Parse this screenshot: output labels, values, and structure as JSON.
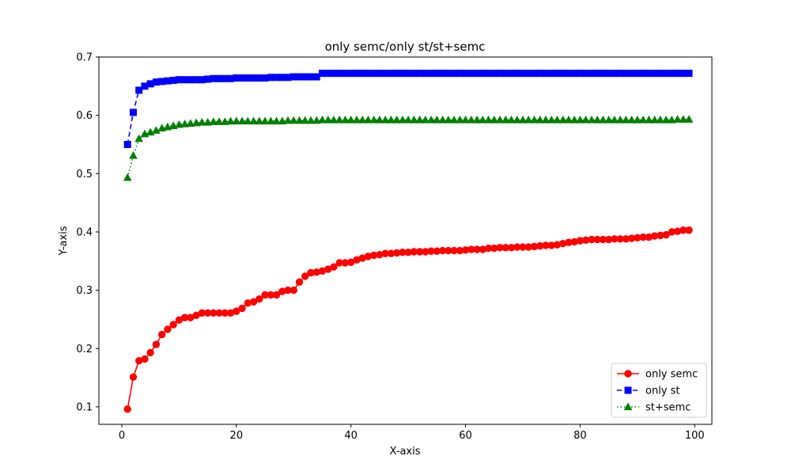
{
  "chart_data": {
    "type": "line",
    "title": "only semc/only st/st+semc",
    "xlabel": "X-axis",
    "ylabel": "Y-axis",
    "xlim": [
      -4,
      103
    ],
    "ylim": [
      0.07,
      0.7
    ],
    "xticks": [
      0,
      20,
      40,
      60,
      80,
      100
    ],
    "yticks": [
      0.1,
      0.2,
      0.3,
      0.4,
      0.5,
      0.6,
      0.7
    ],
    "xtick_labels": [
      "0",
      "20",
      "40",
      "60",
      "80",
      "100"
    ],
    "ytick_labels": [
      "0.1",
      "0.2",
      "0.3",
      "0.4",
      "0.5",
      "0.6",
      "0.7"
    ],
    "grid": false,
    "legend_position": "lower-right",
    "x": [
      1,
      2,
      3,
      4,
      5,
      6,
      7,
      8,
      9,
      10,
      11,
      12,
      13,
      14,
      15,
      16,
      17,
      18,
      19,
      20,
      21,
      22,
      23,
      24,
      25,
      26,
      27,
      28,
      29,
      30,
      31,
      32,
      33,
      34,
      35,
      36,
      37,
      38,
      39,
      40,
      41,
      42,
      43,
      44,
      45,
      46,
      47,
      48,
      49,
      50,
      51,
      52,
      53,
      54,
      55,
      56,
      57,
      58,
      59,
      60,
      61,
      62,
      63,
      64,
      65,
      66,
      67,
      68,
      69,
      70,
      71,
      72,
      73,
      74,
      75,
      76,
      77,
      78,
      79,
      80,
      81,
      82,
      83,
      84,
      85,
      86,
      87,
      88,
      89,
      90,
      91,
      92,
      93,
      94,
      95,
      96,
      97,
      98,
      99
    ],
    "series": [
      {
        "name": "only semc",
        "color": "#ff0000",
        "marker": "circle",
        "linestyle": "solid",
        "values": [
          0.096,
          0.151,
          0.179,
          0.182,
          0.193,
          0.207,
          0.224,
          0.233,
          0.241,
          0.249,
          0.253,
          0.253,
          0.257,
          0.261,
          0.261,
          0.261,
          0.261,
          0.261,
          0.261,
          0.264,
          0.269,
          0.278,
          0.28,
          0.285,
          0.292,
          0.292,
          0.292,
          0.298,
          0.3,
          0.3,
          0.314,
          0.324,
          0.33,
          0.331,
          0.333,
          0.336,
          0.34,
          0.347,
          0.347,
          0.348,
          0.352,
          0.355,
          0.358,
          0.36,
          0.361,
          0.363,
          0.363,
          0.364,
          0.365,
          0.365,
          0.366,
          0.366,
          0.366,
          0.367,
          0.367,
          0.368,
          0.368,
          0.368,
          0.368,
          0.369,
          0.37,
          0.37,
          0.37,
          0.372,
          0.372,
          0.373,
          0.373,
          0.373,
          0.374,
          0.374,
          0.374,
          0.375,
          0.376,
          0.377,
          0.377,
          0.378,
          0.38,
          0.382,
          0.383,
          0.385,
          0.386,
          0.387,
          0.387,
          0.387,
          0.387,
          0.388,
          0.388,
          0.388,
          0.389,
          0.39,
          0.391,
          0.391,
          0.393,
          0.394,
          0.395,
          0.4,
          0.401,
          0.403,
          0.403
        ]
      },
      {
        "name": "only st",
        "color": "#0000ff",
        "marker": "square",
        "linestyle": "dashed",
        "values": [
          0.55,
          0.605,
          0.643,
          0.65,
          0.654,
          0.657,
          0.658,
          0.659,
          0.66,
          0.661,
          0.661,
          0.661,
          0.661,
          0.661,
          0.662,
          0.663,
          0.663,
          0.663,
          0.663,
          0.664,
          0.664,
          0.664,
          0.664,
          0.664,
          0.664,
          0.665,
          0.665,
          0.665,
          0.665,
          0.666,
          0.666,
          0.666,
          0.666,
          0.666,
          0.672,
          0.672,
          0.672,
          0.672,
          0.672,
          0.672,
          0.672,
          0.672,
          0.672,
          0.672,
          0.672,
          0.672,
          0.672,
          0.672,
          0.672,
          0.672,
          0.672,
          0.672,
          0.672,
          0.672,
          0.672,
          0.672,
          0.672,
          0.672,
          0.672,
          0.672,
          0.672,
          0.672,
          0.672,
          0.672,
          0.672,
          0.672,
          0.672,
          0.672,
          0.672,
          0.672,
          0.672,
          0.672,
          0.672,
          0.672,
          0.672,
          0.672,
          0.672,
          0.672,
          0.672,
          0.672,
          0.672,
          0.672,
          0.672,
          0.672,
          0.672,
          0.672,
          0.672,
          0.672,
          0.672,
          0.672,
          0.672,
          0.672,
          0.672,
          0.672,
          0.672,
          0.672,
          0.672,
          0.672,
          0.672
        ]
      },
      {
        "name": "st+semc",
        "color": "#008000",
        "marker": "triangle",
        "linestyle": "dotted",
        "values": [
          0.493,
          0.531,
          0.56,
          0.568,
          0.571,
          0.574,
          0.578,
          0.58,
          0.582,
          0.584,
          0.585,
          0.586,
          0.587,
          0.588,
          0.588,
          0.589,
          0.589,
          0.589,
          0.59,
          0.59,
          0.59,
          0.59,
          0.59,
          0.59,
          0.59,
          0.59,
          0.59,
          0.59,
          0.591,
          0.591,
          0.591,
          0.591,
          0.591,
          0.591,
          0.592,
          0.592,
          0.592,
          0.592,
          0.592,
          0.592,
          0.592,
          0.592,
          0.592,
          0.592,
          0.592,
          0.592,
          0.592,
          0.592,
          0.592,
          0.592,
          0.592,
          0.592,
          0.592,
          0.592,
          0.592,
          0.592,
          0.592,
          0.592,
          0.592,
          0.592,
          0.592,
          0.592,
          0.592,
          0.592,
          0.592,
          0.592,
          0.592,
          0.592,
          0.592,
          0.592,
          0.592,
          0.592,
          0.592,
          0.592,
          0.592,
          0.592,
          0.592,
          0.592,
          0.592,
          0.592,
          0.592,
          0.592,
          0.592,
          0.592,
          0.592,
          0.592,
          0.592,
          0.592,
          0.592,
          0.592,
          0.592,
          0.592,
          0.592,
          0.592,
          0.592,
          0.592,
          0.593,
          0.593,
          0.593
        ]
      }
    ]
  }
}
